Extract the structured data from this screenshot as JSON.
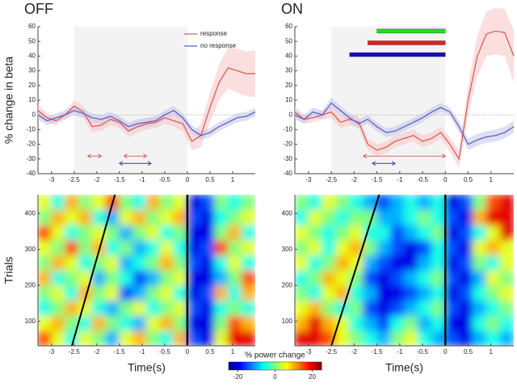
{
  "chart_data": [
    {
      "type": "line",
      "title": "OFF",
      "ylabel": "% change in beta",
      "legend": true,
      "xlim": [
        -3.3,
        1.5
      ],
      "ylim": [
        -40,
        60
      ],
      "xticks": [
        -3,
        -2.5,
        -2,
        -1.5,
        -1,
        -0.5,
        0,
        0.5,
        1
      ],
      "yticks": [
        -40,
        -30,
        -20,
        -10,
        0,
        10,
        20,
        30,
        40,
        50,
        60
      ],
      "shaded": [
        -2.5,
        0
      ],
      "reference_line": 0,
      "x": [
        -3.3,
        -3.1,
        -2.9,
        -2.7,
        -2.5,
        -2.3,
        -2.1,
        -1.9,
        -1.7,
        -1.5,
        -1.3,
        -1.1,
        -0.9,
        -0.7,
        -0.5,
        -0.3,
        -0.1,
        0.1,
        0.3,
        0.5,
        0.7,
        0.9,
        1.1,
        1.3,
        1.5
      ],
      "series": [
        {
          "name": "response",
          "color": "#d9534f",
          "band": "#f6c9c8",
          "values": [
            3,
            -2,
            -4,
            0,
            6,
            2,
            -8,
            -7,
            -3,
            -5,
            -11,
            -8,
            -6,
            -5,
            -2,
            -4,
            -6,
            -18,
            -14,
            5,
            22,
            32,
            30,
            28,
            28
          ],
          "errors": [
            4,
            3,
            3,
            3,
            4,
            4,
            4,
            4,
            4,
            4,
            4,
            4,
            4,
            4,
            4,
            4,
            5,
            6,
            8,
            10,
            12,
            14,
            15,
            15,
            16
          ]
        },
        {
          "name": "no response",
          "color": "#5a5ab8",
          "band": "#c8c8ee",
          "values": [
            0,
            -4,
            -2,
            0,
            3,
            1,
            -2,
            -3,
            -1,
            -4,
            -8,
            -6,
            -5,
            -4,
            0,
            3,
            -2,
            -10,
            -14,
            -12,
            -8,
            -5,
            -2,
            -1,
            2
          ],
          "errors": [
            3,
            3,
            3,
            3,
            3,
            3,
            3,
            3,
            3,
            3,
            3,
            3,
            3,
            3,
            3,
            3,
            3,
            3,
            3,
            3,
            3,
            3,
            3,
            3,
            3
          ]
        }
      ],
      "intervals": [
        {
          "color": "#d9534f",
          "start": -2.2,
          "end": -1.9,
          "y": -28,
          "style": "arrow"
        },
        {
          "color": "#d9534f",
          "start": -1.4,
          "end": -0.9,
          "y": -28,
          "style": "arrow"
        },
        {
          "color": "#3a3aa8",
          "start": -1.5,
          "end": -0.8,
          "y": -33,
          "style": "arrow"
        }
      ]
    },
    {
      "type": "line",
      "title": "ON",
      "xlim": [
        -3.3,
        1.5
      ],
      "ylim": [
        -40,
        60
      ],
      "xticks": [
        -3,
        -2.5,
        -2,
        -1.5,
        -1,
        -0.5,
        0,
        0.5,
        1
      ],
      "yticks": [
        -40,
        -30,
        -20,
        -10,
        0,
        10,
        20,
        30,
        40,
        50,
        60
      ],
      "shaded": [
        -2.5,
        0
      ],
      "reference_line": 0,
      "x": [
        -3.3,
        -3.1,
        -2.9,
        -2.7,
        -2.5,
        -2.3,
        -2.1,
        -1.9,
        -1.7,
        -1.5,
        -1.3,
        -1.1,
        -0.9,
        -0.7,
        -0.5,
        -0.3,
        -0.1,
        0.1,
        0.3,
        0.5,
        0.7,
        0.9,
        1.1,
        1.3,
        1.5
      ],
      "series": [
        {
          "color": "#d9534f",
          "band": "#f6c9c8",
          "values": [
            2,
            -3,
            -2,
            0,
            2,
            -5,
            -3,
            -5,
            -20,
            -24,
            -22,
            -18,
            -16,
            -14,
            -18,
            -16,
            -12,
            -20,
            -30,
            10,
            40,
            55,
            57,
            56,
            40
          ],
          "errors": [
            4,
            3,
            3,
            3,
            4,
            4,
            4,
            4,
            4,
            4,
            4,
            4,
            4,
            4,
            4,
            4,
            4,
            5,
            6,
            10,
            14,
            15,
            16,
            16,
            18
          ]
        },
        {
          "color": "#5a5ab8",
          "band": "#c8c8ee",
          "values": [
            0,
            -3,
            2,
            0,
            8,
            3,
            -2,
            -6,
            -3,
            -8,
            -12,
            -11,
            -8,
            -5,
            -2,
            2,
            5,
            2,
            -8,
            -20,
            -17,
            -15,
            -14,
            -12,
            -8
          ],
          "errors": [
            3,
            3,
            3,
            3,
            4,
            3,
            3,
            3,
            3,
            3,
            3,
            3,
            3,
            3,
            3,
            3,
            3,
            3,
            4,
            4,
            4,
            4,
            4,
            4,
            4
          ]
        }
      ],
      "intervals": [
        {
          "color": "#22dd22",
          "start": -1.5,
          "end": 0,
          "y": 57,
          "style": "bar"
        },
        {
          "color": "#dd2222",
          "start": -1.7,
          "end": 0,
          "y": 49,
          "style": "bar"
        },
        {
          "color": "#1010c0",
          "start": -2.1,
          "end": 0,
          "y": 41,
          "style": "bar"
        },
        {
          "color": "#d9534f",
          "start": -1.8,
          "end": 0,
          "y": -28,
          "style": "arrow"
        },
        {
          "color": "#3a3aa8",
          "start": -1.6,
          "end": -1.1,
          "y": -33,
          "style": "arrow"
        }
      ]
    },
    {
      "type": "heatmap",
      "xlabel": "Time(s)",
      "ylabel": "Trials",
      "xlim": [
        -3.3,
        1.5
      ],
      "ylim": [
        32,
        452
      ],
      "xticks": [
        -3,
        -2.5,
        -2,
        -1.5,
        -1,
        -0.5,
        0,
        0.5,
        1
      ],
      "yticks": [
        100,
        200,
        300,
        400
      ],
      "x_edges": [
        -3.3,
        -3.0,
        -2.7,
        -2.4,
        -2.1,
        -1.8,
        -1.5,
        -1.2,
        -0.9,
        -0.6,
        -0.3,
        0,
        0.3,
        0.6,
        0.9,
        1.2,
        1.5
      ],
      "y_edges": [
        32,
        74,
        116,
        158,
        200,
        242,
        284,
        326,
        368,
        410,
        452
      ],
      "onset_line": 0,
      "reaction_line": {
        "x": [
          -2.55,
          -1.6
        ],
        "y": [
          32,
          452
        ]
      },
      "z": [
        [
          15,
          5,
          -5,
          5,
          0,
          -10,
          5,
          10,
          0,
          -5,
          10,
          -15,
          -20,
          5,
          20,
          20
        ],
        [
          5,
          10,
          0,
          -5,
          10,
          0,
          -5,
          -10,
          5,
          10,
          0,
          -20,
          -20,
          0,
          15,
          10
        ],
        [
          -5,
          0,
          10,
          5,
          -5,
          -10,
          0,
          5,
          -5,
          0,
          5,
          -15,
          -20,
          -5,
          0,
          -5
        ],
        [
          0,
          5,
          -5,
          10,
          0,
          5,
          -15,
          -10,
          0,
          5,
          -5,
          -20,
          -15,
          10,
          -5,
          10
        ],
        [
          10,
          -5,
          0,
          5,
          -10,
          0,
          -5,
          -15,
          -10,
          0,
          5,
          -20,
          -20,
          -10,
          0,
          15
        ],
        [
          0,
          10,
          5,
          -5,
          0,
          5,
          -10,
          -5,
          0,
          10,
          0,
          -15,
          -20,
          -5,
          5,
          -5
        ],
        [
          5,
          0,
          15,
          0,
          10,
          -5,
          0,
          -10,
          -5,
          5,
          -5,
          -20,
          -15,
          15,
          0,
          5
        ],
        [
          15,
          5,
          -5,
          0,
          5,
          0,
          -10,
          0,
          5,
          -5,
          0,
          -20,
          -20,
          0,
          10,
          -5
        ],
        [
          0,
          10,
          5,
          10,
          -5,
          -10,
          5,
          10,
          0,
          5,
          10,
          -15,
          -20,
          -5,
          0,
          5
        ],
        [
          5,
          -5,
          10,
          0,
          5,
          15,
          0,
          -5,
          10,
          0,
          5,
          -20,
          -15,
          0,
          -5,
          0
        ]
      ]
    },
    {
      "type": "heatmap",
      "xlabel": "Time(s)",
      "xlim": [
        -3.3,
        1.5
      ],
      "ylim": [
        32,
        452
      ],
      "xticks": [
        -3,
        -2.5,
        -2,
        -1.5,
        -1,
        -0.5,
        0,
        0.5,
        1
      ],
      "yticks": [
        100,
        200,
        300,
        400
      ],
      "x_edges": [
        -3.3,
        -3.0,
        -2.7,
        -2.4,
        -2.1,
        -1.8,
        -1.5,
        -1.2,
        -0.9,
        -0.6,
        -0.3,
        0,
        0.3,
        0.6,
        0.9,
        1.2,
        1.5
      ],
      "y_edges": [
        32,
        74,
        116,
        158,
        200,
        242,
        284,
        326,
        368,
        410,
        452
      ],
      "onset_line": 0,
      "reaction_line": {
        "x": [
          -2.5,
          -1.45
        ],
        "y": [
          32,
          452
        ]
      },
      "z": [
        [
          20,
          20,
          15,
          5,
          0,
          -5,
          -10,
          0,
          5,
          -5,
          -10,
          -15,
          -20,
          -10,
          -5,
          -10
        ],
        [
          10,
          20,
          10,
          5,
          -5,
          -10,
          -15,
          -5,
          0,
          -10,
          -5,
          -20,
          -20,
          -5,
          0,
          -5
        ],
        [
          5,
          10,
          0,
          -5,
          0,
          -15,
          -20,
          -15,
          -10,
          -5,
          0,
          -15,
          -20,
          -10,
          -5,
          0
        ],
        [
          0,
          -5,
          5,
          10,
          -5,
          -10,
          -20,
          -20,
          -15,
          -10,
          -5,
          -20,
          -15,
          -5,
          0,
          5
        ],
        [
          -5,
          0,
          10,
          5,
          0,
          -15,
          -20,
          -15,
          -10,
          -5,
          0,
          -15,
          -20,
          -10,
          5,
          0
        ],
        [
          5,
          -5,
          0,
          10,
          5,
          -10,
          -15,
          -20,
          -20,
          -10,
          -5,
          -20,
          -15,
          0,
          -5,
          5
        ],
        [
          0,
          5,
          -5,
          5,
          10,
          0,
          -10,
          -15,
          -20,
          -15,
          -5,
          -15,
          -20,
          5,
          10,
          5
        ],
        [
          5,
          0,
          -5,
          0,
          5,
          -5,
          -5,
          -15,
          -10,
          -5,
          0,
          -20,
          -15,
          -5,
          5,
          20
        ],
        [
          -5,
          5,
          0,
          -5,
          0,
          0,
          -10,
          -10,
          -5,
          0,
          -5,
          -15,
          -20,
          10,
          20,
          20
        ],
        [
          0,
          -5,
          5,
          0,
          -5,
          -10,
          -15,
          -10,
          -5,
          -10,
          -5,
          -20,
          -15,
          0,
          15,
          20
        ]
      ]
    }
  ],
  "colorbar": {
    "title": "% power change",
    "lim": [
      -25,
      25
    ],
    "ticks": [
      -20,
      0,
      20
    ]
  }
}
